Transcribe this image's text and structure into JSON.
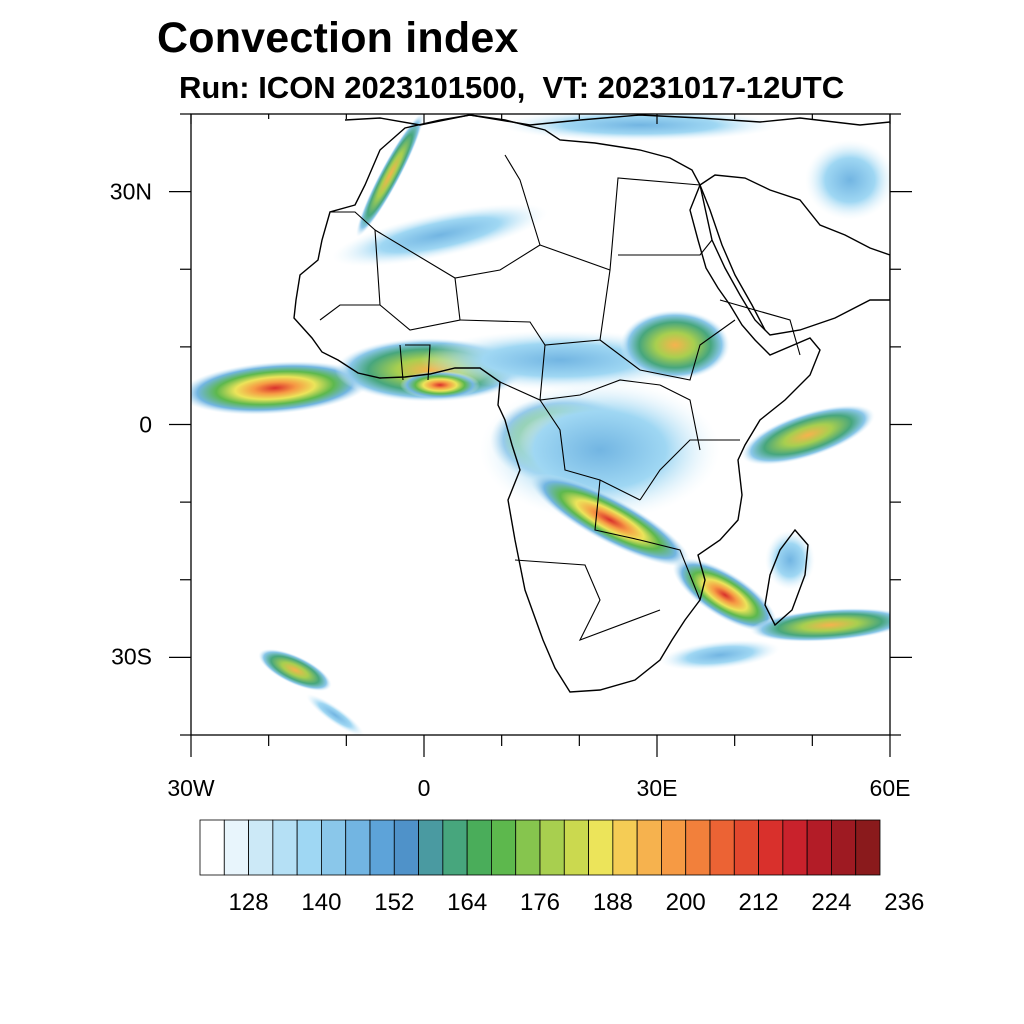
{
  "title": "Convection index",
  "subtitle": "Run: ICON 2023101500,  VT: 20231017-12UTC",
  "map": {
    "projection": "cylindrical equidistant",
    "lon_range": [
      -30,
      60
    ],
    "lat_range": [
      -40,
      40
    ],
    "x_tick_labels": [
      {
        "lon": -30,
        "label": "30W"
      },
      {
        "lon": 0,
        "label": "0"
      },
      {
        "lon": 30,
        "label": "30E"
      },
      {
        "lon": 60,
        "label": "60E"
      }
    ],
    "y_tick_labels": [
      {
        "lat": 30,
        "label": "30N"
      },
      {
        "lat": 0,
        "label": "0"
      },
      {
        "lat": -30,
        "label": "30S"
      }
    ],
    "convection_areas": [
      {
        "name": "west-african-atlantic-band",
        "lon": -20,
        "lat": 5,
        "max_value": 208
      },
      {
        "name": "west-africa-coast",
        "lon": 0,
        "lat": 6,
        "max_value": 200
      },
      {
        "name": "congo-basin",
        "lon": 17,
        "lat": -2,
        "max_value": 212
      },
      {
        "name": "zambia-malawi-band",
        "lon": 27,
        "lat": -13,
        "max_value": 220
      },
      {
        "name": "mozambique-madagascar",
        "lon": 36,
        "lat": -22,
        "max_value": 212
      },
      {
        "name": "indian-ocean-equatorial",
        "lon": 47,
        "lat": -1,
        "max_value": 180
      },
      {
        "name": "south-atlantic-island",
        "lon": -17,
        "lat": -31,
        "max_value": 170
      },
      {
        "name": "southern-indian-ocean-band",
        "lon": 48,
        "lat": -26,
        "max_value": 172
      },
      {
        "name": "ethiopian-highlands",
        "lon": 36,
        "lat": 8,
        "max_value": 176
      }
    ]
  },
  "colorbar": {
    "colors": [
      "#ffffff",
      "#e8f5fc",
      "#cce9f7",
      "#b5e0f5",
      "#9fd7f3",
      "#8ac7ea",
      "#72b5e2",
      "#5da3d9",
      "#4f92c9",
      "#4a9aa1",
      "#47a67d",
      "#4aad5a",
      "#5db84d",
      "#86c54e",
      "#a8cf4f",
      "#cbd94f",
      "#ece45a",
      "#f5cc55",
      "#f6b24e",
      "#f69a44",
      "#f2803b",
      "#ec6334",
      "#e2482e",
      "#d9302c",
      "#c9222c",
      "#b31c27",
      "#9e1a22",
      "#8a1a1c"
    ],
    "labels": [
      "128",
      "140",
      "152",
      "164",
      "176",
      "188",
      "200",
      "212",
      "224",
      "236"
    ]
  }
}
